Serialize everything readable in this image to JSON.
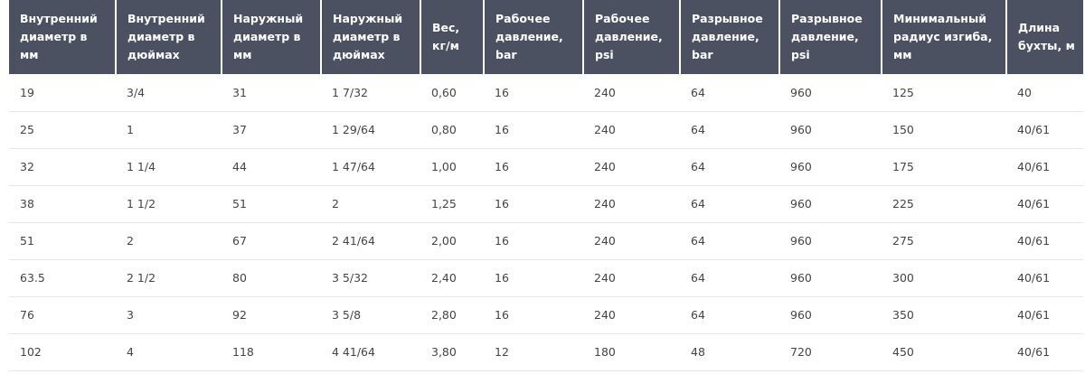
{
  "table": {
    "header": [
      "Внутренний диаметр в мм",
      "Внутренний диаметр в дюймах",
      "Наружный диаметр в мм",
      "Наружный диаметр в дюймах",
      "Вес, кг/м",
      "Рабочее давление, bar",
      "Рабочее давление, psi",
      "Разрывное давление, bar",
      "Разрывное давление, psi",
      "Минимальный радиус изгиба, мм",
      "Длина бухты, м"
    ],
    "rows": [
      [
        "19",
        "3/4",
        "31",
        "1 7/32",
        "0,60",
        "16",
        "240",
        "64",
        "960",
        "125",
        "40"
      ],
      [
        "25",
        "1",
        "37",
        "1 29/64",
        "0,80",
        "16",
        "240",
        "64",
        "960",
        "150",
        "40/61"
      ],
      [
        "32",
        "1 1/4",
        "44",
        "1 47/64",
        "1,00",
        "16",
        "240",
        "64",
        "960",
        "175",
        "40/61"
      ],
      [
        "38",
        "1 1/2",
        "51",
        "2",
        "1,25",
        "16",
        "240",
        "64",
        "960",
        "225",
        "40/61"
      ],
      [
        "51",
        "2",
        "67",
        "2 41/64",
        "2,00",
        "16",
        "240",
        "64",
        "960",
        "275",
        "40/61"
      ],
      [
        "63.5",
        "2 1/2",
        "80",
        "3 5/32",
        "2,40",
        "16",
        "240",
        "64",
        "960",
        "300",
        "40/61"
      ],
      [
        "76",
        "3",
        "92",
        "3 5/8",
        "2,80",
        "16",
        "240",
        "64",
        "960",
        "350",
        "40/61"
      ],
      [
        "102",
        "4",
        "118",
        "4 41/64",
        "3,80",
        "12",
        "180",
        "48",
        "720",
        "450",
        "40/61"
      ]
    ]
  }
}
